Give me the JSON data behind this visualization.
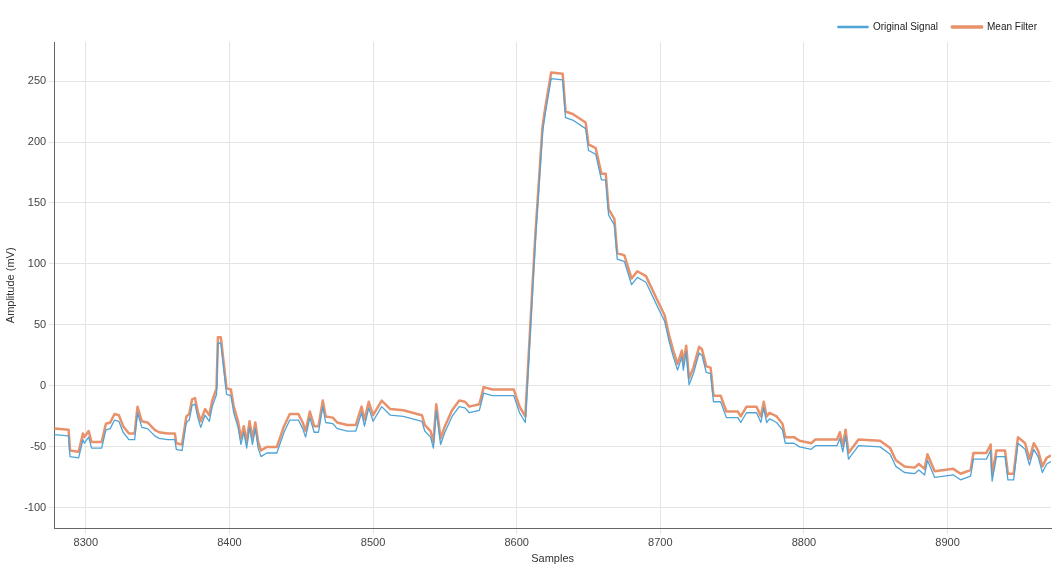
{
  "chart_data": {
    "type": "line",
    "xlabel": "Samples",
    "ylabel": "Amplitude (mV)",
    "xlim": [
      8278,
      8972
    ],
    "ylim": [
      -117,
      282
    ],
    "xticks": [
      8300,
      8400,
      8500,
      8600,
      8700,
      8800,
      8900
    ],
    "yticks": [
      -100,
      -50,
      0,
      50,
      100,
      150,
      200,
      250
    ],
    "grid": true,
    "legend": "top right",
    "marker": "none",
    "line_style": "solid",
    "x": [
      8278,
      8288,
      8289,
      8295,
      8298,
      8299,
      8302,
      8304,
      8311,
      8314,
      8317,
      8320,
      8323,
      8326,
      8330,
      8334,
      8336,
      8339,
      8343,
      8348,
      8351,
      8357,
      8362,
      8363,
      8367,
      8370,
      8372,
      8374,
      8376,
      8378,
      8380,
      8383,
      8386,
      8388,
      8391,
      8392,
      8394,
      8396,
      8398,
      8401,
      8403,
      8406,
      8408,
      8410,
      8412,
      8414,
      8416,
      8418,
      8420,
      8422,
      8426,
      8433,
      8438,
      8442,
      8448,
      8451,
      8453,
      8456,
      8459,
      8462,
      8465,
      8467,
      8472,
      8475,
      8482,
      8488,
      8492,
      8494,
      8497,
      8500,
      8506,
      8512,
      8521,
      8534,
      8536,
      8540,
      8542,
      8544,
      8547,
      8550,
      8555,
      8560,
      8564,
      8567,
      8574,
      8577,
      8583,
      8598,
      8602,
      8606,
      8611,
      8613,
      8618,
      8620,
      8624,
      8632,
      8634,
      8639,
      8648,
      8650,
      8655,
      8659,
      8662,
      8664,
      8668,
      8670,
      8675,
      8680,
      8684,
      8690,
      8698,
      8703,
      8706,
      8709,
      8712,
      8715,
      8716,
      8718,
      8720,
      8723,
      8727,
      8729,
      8732,
      8735,
      8737,
      8742,
      8746,
      8754,
      8756,
      8760,
      8767,
      8770,
      8772,
      8774,
      8776,
      8781,
      8785,
      8787,
      8793,
      8797,
      8805,
      8808,
      8823,
      8825,
      8827,
      8829,
      8831,
      8838,
      8853,
      8860,
      8864,
      8870,
      8877,
      8880,
      8884,
      8886,
      8891,
      8904,
      8909,
      8916,
      8918,
      8927,
      8930,
      8931,
      8934,
      8940,
      8942,
      8946,
      8949,
      8954,
      8957,
      8960,
      8963,
      8966,
      8969,
      8972
    ],
    "series": [
      {
        "name": "Original Signal",
        "color": "#4fa3d6",
        "values": [
          -40,
          -41,
          -58,
          -59,
          -44,
          -47,
          -42,
          -51,
          -51,
          -36,
          -35,
          -28,
          -29,
          -38,
          -44,
          -44,
          -22,
          -34,
          -35,
          -41,
          -43,
          -44,
          -44,
          -52,
          -53,
          -30,
          -28,
          -16,
          -15,
          -26,
          -34,
          -24,
          -29,
          -17,
          -7,
          35,
          35,
          14,
          -7,
          -8,
          -22,
          -34,
          -48,
          -38,
          -51,
          -34,
          -48,
          -35,
          -51,
          -58,
          -55,
          -55,
          -38,
          -28,
          -28,
          -35,
          -42,
          -26,
          -38,
          -38,
          -17,
          -30,
          -31,
          -35,
          -37,
          -37,
          -22,
          -33,
          -18,
          -29,
          -17,
          -24,
          -25,
          -29,
          -37,
          -42,
          -51,
          -20,
          -48,
          -38,
          -25,
          -17,
          -18,
          -22,
          -20,
          -6,
          -8,
          -8,
          -22,
          -30,
          77,
          119,
          208,
          224,
          252,
          251,
          220,
          218,
          211,
          193,
          190,
          169,
          169,
          140,
          132,
          104,
          102,
          83,
          89,
          85,
          65,
          53,
          37,
          24,
          13,
          24,
          13,
          28,
          1,
          10,
          27,
          25,
          11,
          10,
          -13,
          -13,
          -26,
          -26,
          -30,
          -22,
          -22,
          -30,
          -18,
          -30,
          -27,
          -30,
          -36,
          -47,
          -47,
          -50,
          -52,
          -49,
          -49,
          -43,
          -54,
          -41,
          -60,
          -49,
          -50,
          -56,
          -66,
          -71,
          -72,
          -69,
          -73,
          -61,
          -75,
          -73,
          -77,
          -74,
          -60,
          -60,
          -53,
          -78,
          -58,
          -58,
          -77,
          -77,
          -47,
          -52,
          -65,
          -52,
          -58,
          -71,
          -64,
          -62
        ]
      },
      {
        "name": "Mean Filter",
        "color": "#e8916a",
        "values": [
          -35,
          -36,
          -53,
          -54,
          -39,
          -42,
          -37,
          -46,
          -46,
          -31,
          -30,
          -23,
          -24,
          -33,
          -39,
          -39,
          -17,
          -29,
          -30,
          -36,
          -38,
          -39,
          -39,
          -47,
          -48,
          -25,
          -23,
          -11,
          -10,
          -21,
          -29,
          -19,
          -24,
          -12,
          -2,
          40,
          40,
          19,
          -2,
          -3,
          -17,
          -29,
          -43,
          -33,
          -46,
          -29,
          -43,
          -30,
          -46,
          -53,
          -50,
          -50,
          -33,
          -23,
          -23,
          -30,
          -37,
          -21,
          -33,
          -33,
          -12,
          -25,
          -26,
          -30,
          -32,
          -32,
          -17,
          -28,
          -13,
          -24,
          -12,
          -19,
          -20,
          -24,
          -32,
          -37,
          -46,
          -15,
          -43,
          -33,
          -20,
          -12,
          -13,
          -17,
          -15,
          -1,
          -3,
          -3,
          -17,
          -25,
          82,
          124,
          213,
          229,
          257,
          256,
          225,
          223,
          216,
          198,
          195,
          174,
          174,
          145,
          137,
          109,
          107,
          88,
          94,
          90,
          70,
          58,
          42,
          29,
          18,
          29,
          18,
          33,
          6,
          15,
          32,
          30,
          16,
          15,
          -8,
          -8,
          -21,
          -21,
          -25,
          -17,
          -17,
          -25,
          -13,
          -25,
          -22,
          -25,
          -31,
          -42,
          -42,
          -45,
          -47,
          -44,
          -44,
          -38,
          -49,
          -36,
          -55,
          -44,
          -45,
          -51,
          -61,
          -66,
          -67,
          -64,
          -68,
          -56,
          -70,
          -68,
          -72,
          -69,
          -55,
          -55,
          -48,
          -73,
          -53,
          -53,
          -72,
          -72,
          -42,
          -47,
          -60,
          -47,
          -53,
          -66,
          -59,
          -57
        ]
      }
    ]
  }
}
